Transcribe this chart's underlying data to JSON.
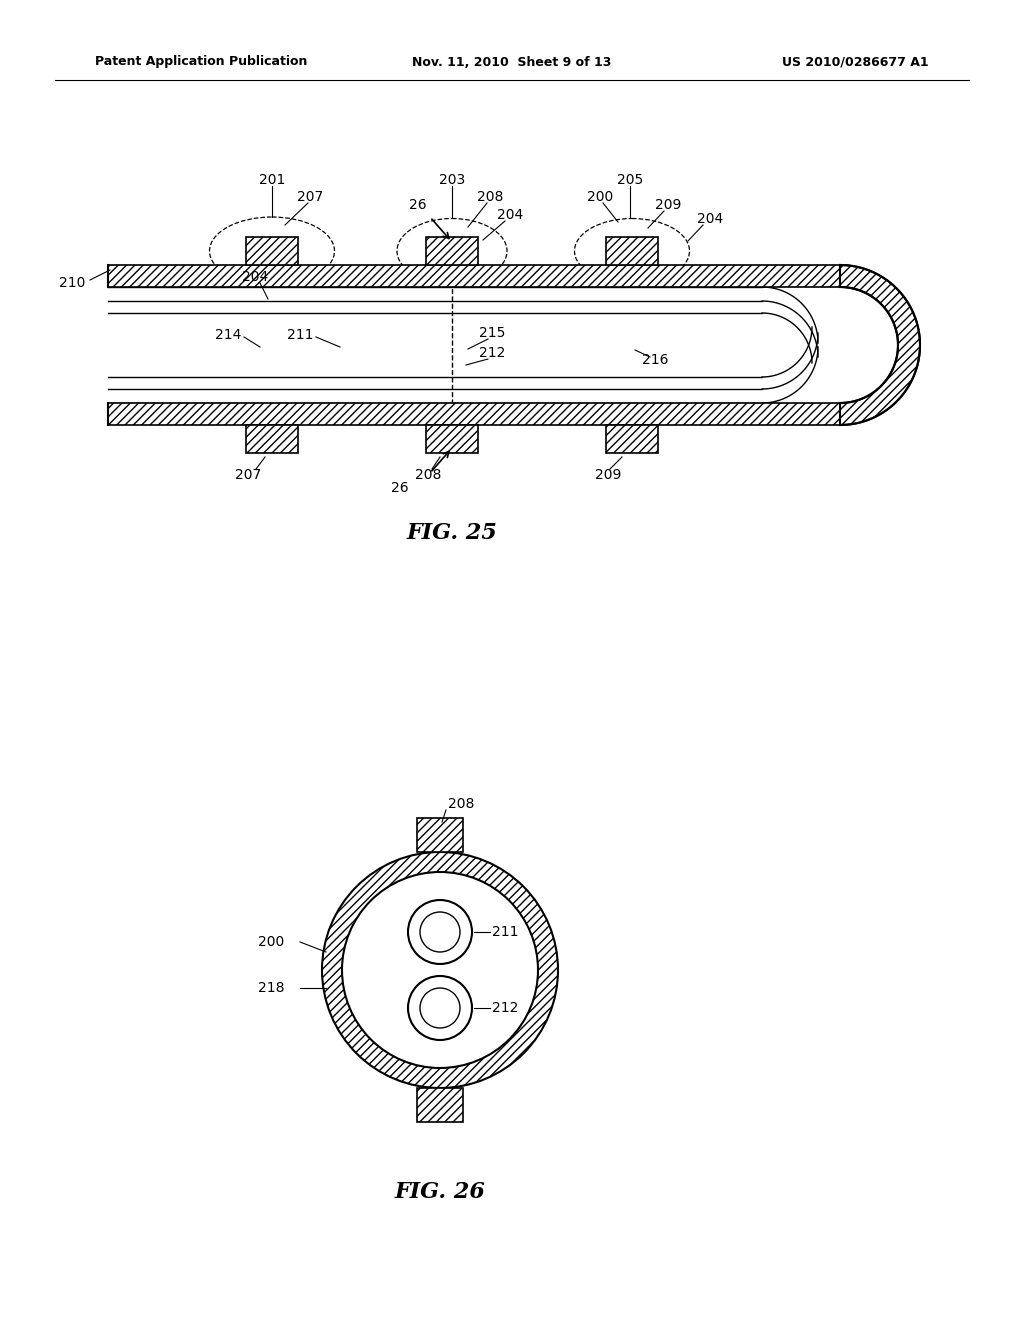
{
  "background_color": "#ffffff",
  "header_left": "Patent Application Publication",
  "header_mid": "Nov. 11, 2010  Sheet 9 of 13",
  "header_right": "US 2010/0286677 A1",
  "fig25_title": "FIG. 25",
  "fig26_title": "FIG. 26",
  "line_color": "#000000"
}
